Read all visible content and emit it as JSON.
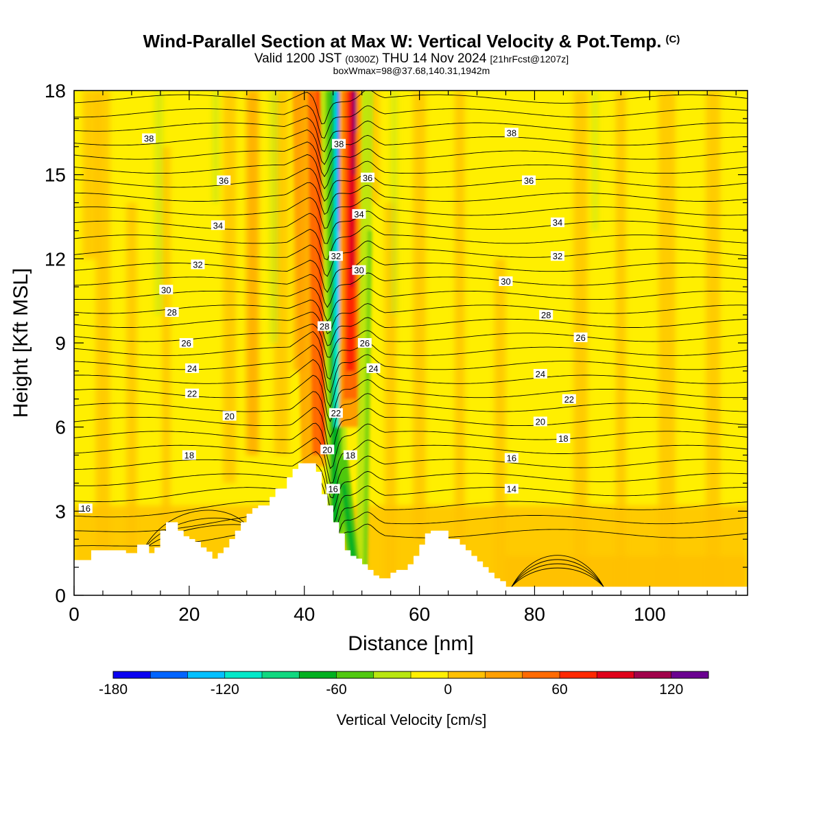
{
  "title": {
    "main": "Wind-Parallel Section at Max W: Vertical Velocity & Pot.Temp.",
    "copyright": "(C)",
    "valid_prefix": "Valid 1200 JST",
    "valid_utc": "(0300Z)",
    "valid_date": "THU 14 Nov 2024",
    "forecast": "[21hrFcst@1207z]",
    "box_info": "boxWmax=98@37.68,140.31,1942m"
  },
  "colorbar": {
    "label": "Vertical Velocity [cm/s]",
    "colors": [
      "#0a00f0",
      "#0064ff",
      "#00c0ff",
      "#00e8c8",
      "#10d880",
      "#00b020",
      "#50c810",
      "#b8e610",
      "#ffef00",
      "#ffc000",
      "#ff9f00",
      "#ff6a00",
      "#ff2800",
      "#e0001a",
      "#a0004a",
      "#6a0090"
    ],
    "tick_labels": [
      "-180",
      "-120",
      "-60",
      "0",
      "60",
      "120"
    ],
    "tick_values": [
      -180,
      -120,
      -60,
      0,
      60,
      120
    ],
    "min": -180,
    "max": 140
  },
  "chart_data": {
    "type": "heatmap",
    "xlabel": "Distance [nm]",
    "ylabel": "Height [Kft MSL]",
    "xlim": [
      0,
      117
    ],
    "ylim": [
      0,
      18
    ],
    "x_ticks": [
      0,
      20,
      40,
      60,
      80,
      100
    ],
    "y_ticks": [
      0,
      3,
      6,
      9,
      12,
      15,
      18
    ],
    "fill_variable": "Vertical Velocity [cm/s]",
    "contour_variable": "Potential Temperature",
    "updraft_core": {
      "x": 47,
      "y_range": [
        4,
        18
      ],
      "max_w": 98
    },
    "downdraft_core": {
      "x": 45,
      "y_range": [
        4,
        18
      ]
    },
    "terrain": [
      [
        0,
        1.25
      ],
      [
        3,
        1.25
      ],
      [
        3,
        1.6
      ],
      [
        9,
        1.6
      ],
      [
        9,
        1.5
      ],
      [
        11,
        1.5
      ],
      [
        11,
        1.8
      ],
      [
        13,
        1.8
      ],
      [
        13,
        1.5
      ],
      [
        14,
        1.5
      ],
      [
        14,
        1.7
      ],
      [
        15,
        1.7
      ],
      [
        15,
        2.3
      ],
      [
        16,
        2.3
      ],
      [
        16,
        2.6
      ],
      [
        18,
        2.6
      ],
      [
        18,
        2.3
      ],
      [
        19,
        2.3
      ],
      [
        19,
        2.1
      ],
      [
        20,
        2.1
      ],
      [
        20,
        2.0
      ],
      [
        21,
        2.0
      ],
      [
        21,
        1.9
      ],
      [
        22,
        1.9
      ],
      [
        22,
        1.7
      ],
      [
        23,
        1.7
      ],
      [
        23,
        1.55
      ],
      [
        24,
        1.55
      ],
      [
        24,
        1.3
      ],
      [
        25,
        1.3
      ],
      [
        25,
        1.5
      ],
      [
        26,
        1.5
      ],
      [
        26,
        1.7
      ],
      [
        27,
        1.7
      ],
      [
        27,
        2.0
      ],
      [
        28,
        2.0
      ],
      [
        28,
        2.3
      ],
      [
        29,
        2.3
      ],
      [
        29,
        2.6
      ],
      [
        30,
        2.6
      ],
      [
        30,
        2.9
      ],
      [
        31,
        2.9
      ],
      [
        31,
        3.1
      ],
      [
        32,
        3.1
      ],
      [
        32,
        3.2
      ],
      [
        34,
        3.2
      ],
      [
        34,
        3.5
      ],
      [
        35,
        3.5
      ],
      [
        35,
        3.8
      ],
      [
        37,
        3.8
      ],
      [
        37,
        4.2
      ],
      [
        38,
        4.2
      ],
      [
        38,
        4.5
      ],
      [
        39,
        4.5
      ],
      [
        39,
        4.7
      ],
      [
        42,
        4.7
      ],
      [
        42,
        4.4
      ],
      [
        43,
        4.4
      ],
      [
        43,
        3.6
      ],
      [
        44,
        3.6
      ],
      [
        44,
        3.2
      ],
      [
        45,
        3.2
      ],
      [
        45,
        2.6
      ],
      [
        46,
        2.6
      ],
      [
        46,
        2.2
      ],
      [
        47,
        2.2
      ],
      [
        47,
        1.6
      ],
      [
        48,
        1.6
      ],
      [
        48,
        1.4
      ],
      [
        49,
        1.4
      ],
      [
        49,
        1.3
      ],
      [
        50,
        1.3
      ],
      [
        50,
        1.1
      ],
      [
        51,
        1.1
      ],
      [
        51,
        0.9
      ],
      [
        52,
        0.9
      ],
      [
        52,
        0.7
      ],
      [
        53,
        0.7
      ],
      [
        53,
        0.6
      ],
      [
        55,
        0.6
      ],
      [
        55,
        0.8
      ],
      [
        56,
        0.8
      ],
      [
        56,
        0.9
      ],
      [
        58,
        0.9
      ],
      [
        58,
        1.1
      ],
      [
        59,
        1.1
      ],
      [
        59,
        1.4
      ],
      [
        60,
        1.4
      ],
      [
        60,
        1.8
      ],
      [
        61,
        1.8
      ],
      [
        61,
        2.2
      ],
      [
        62,
        2.2
      ],
      [
        62,
        2.3
      ],
      [
        65,
        2.3
      ],
      [
        65,
        2.0
      ],
      [
        67,
        2.0
      ],
      [
        67,
        1.8
      ],
      [
        68,
        1.8
      ],
      [
        68,
        1.6
      ],
      [
        69,
        1.6
      ],
      [
        69,
        1.4
      ],
      [
        70,
        1.4
      ],
      [
        70,
        1.2
      ],
      [
        71,
        1.2
      ],
      [
        71,
        1.0
      ],
      [
        72,
        1.0
      ],
      [
        72,
        0.8
      ],
      [
        73,
        0.8
      ],
      [
        73,
        0.6
      ],
      [
        74,
        0.6
      ],
      [
        74,
        0.5
      ],
      [
        75,
        0.5
      ],
      [
        75,
        0.3
      ],
      [
        117,
        0.3
      ]
    ],
    "theta_labels": [
      {
        "x": 2,
        "y": 3.1,
        "text": "16"
      },
      {
        "x": 20,
        "y": 5.0,
        "text": "18"
      },
      {
        "x": 27,
        "y": 6.4,
        "text": "20"
      },
      {
        "x": 20.5,
        "y": 7.2,
        "text": "22"
      },
      {
        "x": 20.5,
        "y": 8.1,
        "text": "24"
      },
      {
        "x": 19.5,
        "y": 9.0,
        "text": "26"
      },
      {
        "x": 17,
        "y": 10.1,
        "text": "28"
      },
      {
        "x": 16,
        "y": 10.9,
        "text": "30"
      },
      {
        "x": 21.5,
        "y": 11.8,
        "text": "32"
      },
      {
        "x": 25,
        "y": 13.2,
        "text": "34"
      },
      {
        "x": 26,
        "y": 14.8,
        "text": "36"
      },
      {
        "x": 13,
        "y": 16.3,
        "text": "38"
      },
      {
        "x": 45,
        "y": 3.8,
        "text": "16"
      },
      {
        "x": 44,
        "y": 5.2,
        "text": "20"
      },
      {
        "x": 48,
        "y": 5.0,
        "text": "18"
      },
      {
        "x": 45.5,
        "y": 6.5,
        "text": "22"
      },
      {
        "x": 43.5,
        "y": 9.6,
        "text": "28"
      },
      {
        "x": 45.5,
        "y": 12.1,
        "text": "32"
      },
      {
        "x": 46,
        "y": 16.1,
        "text": "38"
      },
      {
        "x": 50.5,
        "y": 9.0,
        "text": "26"
      },
      {
        "x": 52,
        "y": 8.1,
        "text": "24"
      },
      {
        "x": 49.5,
        "y": 11.6,
        "text": "30"
      },
      {
        "x": 49.5,
        "y": 13.6,
        "text": "34"
      },
      {
        "x": 51,
        "y": 14.9,
        "text": "36"
      },
      {
        "x": 76,
        "y": 3.8,
        "text": "14"
      },
      {
        "x": 76,
        "y": 4.9,
        "text": "16"
      },
      {
        "x": 85,
        "y": 5.6,
        "text": "18"
      },
      {
        "x": 81,
        "y": 6.2,
        "text": "20"
      },
      {
        "x": 86,
        "y": 7.0,
        "text": "22"
      },
      {
        "x": 81,
        "y": 7.9,
        "text": "24"
      },
      {
        "x": 88,
        "y": 9.2,
        "text": "26"
      },
      {
        "x": 82,
        "y": 10.0,
        "text": "28"
      },
      {
        "x": 75,
        "y": 11.2,
        "text": "30"
      },
      {
        "x": 84,
        "y": 12.1,
        "text": "32"
      },
      {
        "x": 84,
        "y": 13.3,
        "text": "34"
      },
      {
        "x": 79,
        "y": 14.8,
        "text": "36"
      },
      {
        "x": 76,
        "y": 16.5,
        "text": "38"
      }
    ]
  }
}
